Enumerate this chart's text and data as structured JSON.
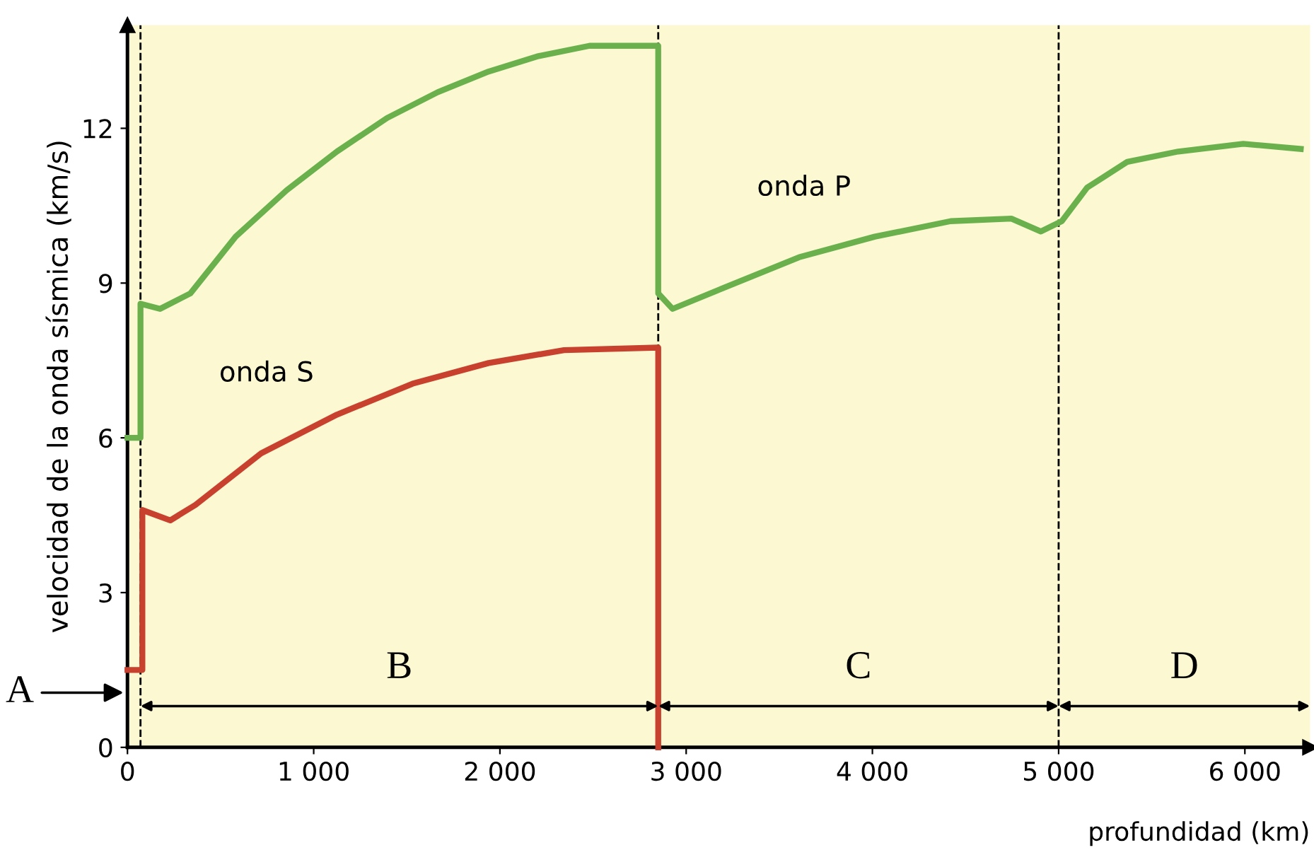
{
  "chart_data": {
    "type": "line",
    "xlabel": "profundidad (km)",
    "ylabel": "velocidad de la onda sísmica (km/s)",
    "xlim": [
      0,
      6350
    ],
    "ylim": [
      0,
      14
    ],
    "xticks": [
      0,
      {
        "value": 1000,
        "label": "1 000"
      },
      {
        "value": 2000,
        "label": "2 000"
      },
      {
        "value": 3000,
        "label": "3 000"
      },
      {
        "value": 4000,
        "label": "4 000"
      },
      {
        "value": 5000,
        "label": "5 000"
      },
      {
        "value": 6000,
        "label": "6 000"
      }
    ],
    "yticks": [
      0,
      3,
      6,
      9,
      12
    ],
    "grid": false,
    "legend": false,
    "line_style": "solid",
    "marker": "none",
    "series": [
      {
        "name": "onda P",
        "color": "#6ab04c",
        "x": [
          0,
          70,
          70,
          175,
          338,
          581,
          855,
          1125,
          1394,
          1666,
          1939,
          2207,
          2481,
          2850,
          2850,
          2927,
          3196,
          3606,
          4013,
          4420,
          4746,
          4905,
          5017,
          5153,
          5369,
          5642,
          5991,
          6300
        ],
        "values": [
          6.0,
          6.0,
          8.6,
          8.5,
          8.8,
          9.9,
          10.8,
          11.55,
          12.2,
          12.7,
          13.1,
          13.4,
          13.6,
          13.6,
          8.8,
          8.5,
          8.9,
          9.5,
          9.9,
          10.2,
          10.25,
          10.0,
          10.2,
          10.85,
          11.35,
          11.55,
          11.7,
          11.6
        ]
      },
      {
        "name": "onda S",
        "color": "#c8402e",
        "x": [
          0,
          80,
          80,
          230,
          365,
          718,
          1125,
          1531,
          1939,
          2344,
          2850,
          2850
        ],
        "values": [
          1.5,
          1.5,
          4.6,
          4.4,
          4.7,
          5.7,
          6.45,
          7.05,
          7.45,
          7.7,
          7.75,
          0
        ]
      }
    ],
    "ref_lines": [
      {
        "axis": "x",
        "value": 70,
        "color": "#000000",
        "line_style": "dashed"
      },
      {
        "axis": "x",
        "value": 2850,
        "color": "#000000",
        "line_style": "dashed"
      },
      {
        "axis": "x",
        "value": 5000,
        "color": "#000000",
        "line_style": "dashed"
      }
    ],
    "annotations": [
      "A",
      "B",
      "C",
      "D"
    ]
  }
}
